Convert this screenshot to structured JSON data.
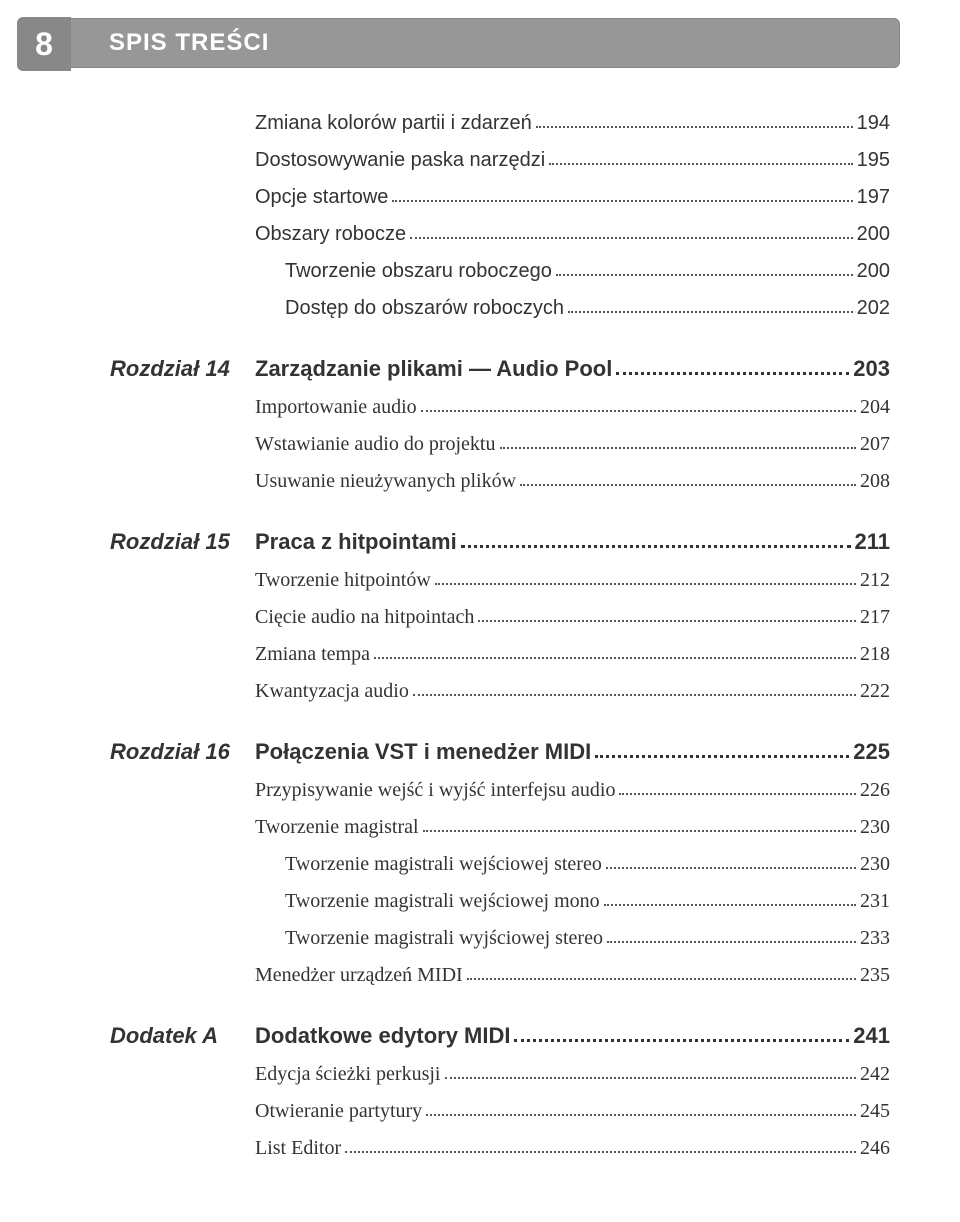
{
  "header": {
    "page_number": "8",
    "title": "SPIS TREŚCI"
  },
  "top_section": {
    "entries": [
      {
        "label": "Zmiana kolorów partii i zdarzeń",
        "page": "194"
      },
      {
        "label": "Dostosowywanie paska narzędzi",
        "page": "195"
      },
      {
        "label": "Opcje startowe",
        "page": "197"
      },
      {
        "label": "Obszary robocze",
        "page": "200"
      },
      {
        "label": "Tworzenie obszaru roboczego",
        "page": "200",
        "sub": true
      },
      {
        "label": "Dostęp do obszarów roboczych",
        "page": "202",
        "sub": true
      }
    ]
  },
  "chapters": [
    {
      "chapter_label": "Rozdział 14",
      "title": "Zarządzanie plikami — Audio Pool",
      "title_page": "203",
      "entries": [
        {
          "label": "Importowanie audio",
          "page": "204"
        },
        {
          "label": "Wstawianie audio do projektu",
          "page": "207"
        },
        {
          "label": "Usuwanie nieużywanych plików",
          "page": "208"
        }
      ]
    },
    {
      "chapter_label": "Rozdział 15",
      "title": "Praca z hitpointami",
      "title_page": "211",
      "entries": [
        {
          "label": "Tworzenie hitpointów",
          "page": "212"
        },
        {
          "label": "Cięcie audio na hitpointach",
          "page": "217"
        },
        {
          "label": "Zmiana tempa",
          "page": "218"
        },
        {
          "label": "Kwantyzacja audio",
          "page": "222"
        }
      ]
    },
    {
      "chapter_label": "Rozdział 16",
      "title": "Połączenia VST i menedżer MIDI",
      "title_page": "225",
      "entries": [
        {
          "label": "Przypisywanie wejść i wyjść interfejsu audio",
          "page": "226"
        },
        {
          "label": "Tworzenie magistral",
          "page": "230"
        },
        {
          "label": "Tworzenie magistrali wejściowej stereo",
          "page": "230",
          "sub": true
        },
        {
          "label": "Tworzenie magistrali wejściowej mono",
          "page": "231",
          "sub": true
        },
        {
          "label": "Tworzenie magistrali wyjściowej stereo",
          "page": "233",
          "sub": true
        },
        {
          "label": "Menedżer urządzeń MIDI",
          "page": "235"
        }
      ]
    },
    {
      "chapter_label": "Dodatek  A",
      "title": "Dodatkowe edytory MIDI",
      "title_page": "241",
      "entries": [
        {
          "label": "Edycja ścieżki perkusji",
          "page": "242"
        },
        {
          "label": "Otwieranie partytury",
          "page": "245"
        },
        {
          "label": "List Editor",
          "page": "246"
        }
      ]
    }
  ]
}
